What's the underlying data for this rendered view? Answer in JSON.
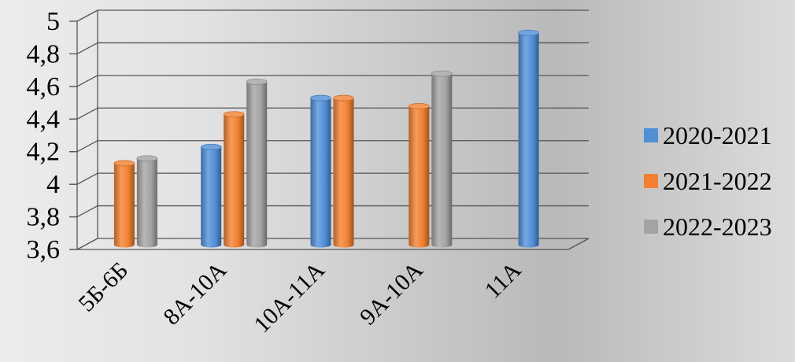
{
  "chart_data": {
    "type": "bar",
    "title": "",
    "xlabel": "",
    "ylabel": "",
    "categories": [
      "5Б-6Б",
      "8А-10А",
      "10А-11А",
      "9А-10А",
      "11А"
    ],
    "series": [
      {
        "name": "2020-2021",
        "color": "#4f8fd8",
        "values": [
          null,
          4.2,
          4.5,
          null,
          4.9
        ]
      },
      {
        "name": "2021-2022",
        "color": "#f2802e",
        "values": [
          4.1,
          4.4,
          4.5,
          4.45,
          null
        ]
      },
      {
        "name": "2022-2023",
        "color": "#a3a3a3",
        "values": [
          4.13,
          4.6,
          null,
          4.65,
          null
        ]
      }
    ],
    "ylim": [
      3.6,
      5
    ],
    "yticks": [
      "3,6",
      "3,8",
      "4",
      "4,2",
      "4,4",
      "4,6",
      "4,8",
      "5"
    ],
    "grid": true,
    "legend": "right",
    "style": "3d-cylinder"
  }
}
